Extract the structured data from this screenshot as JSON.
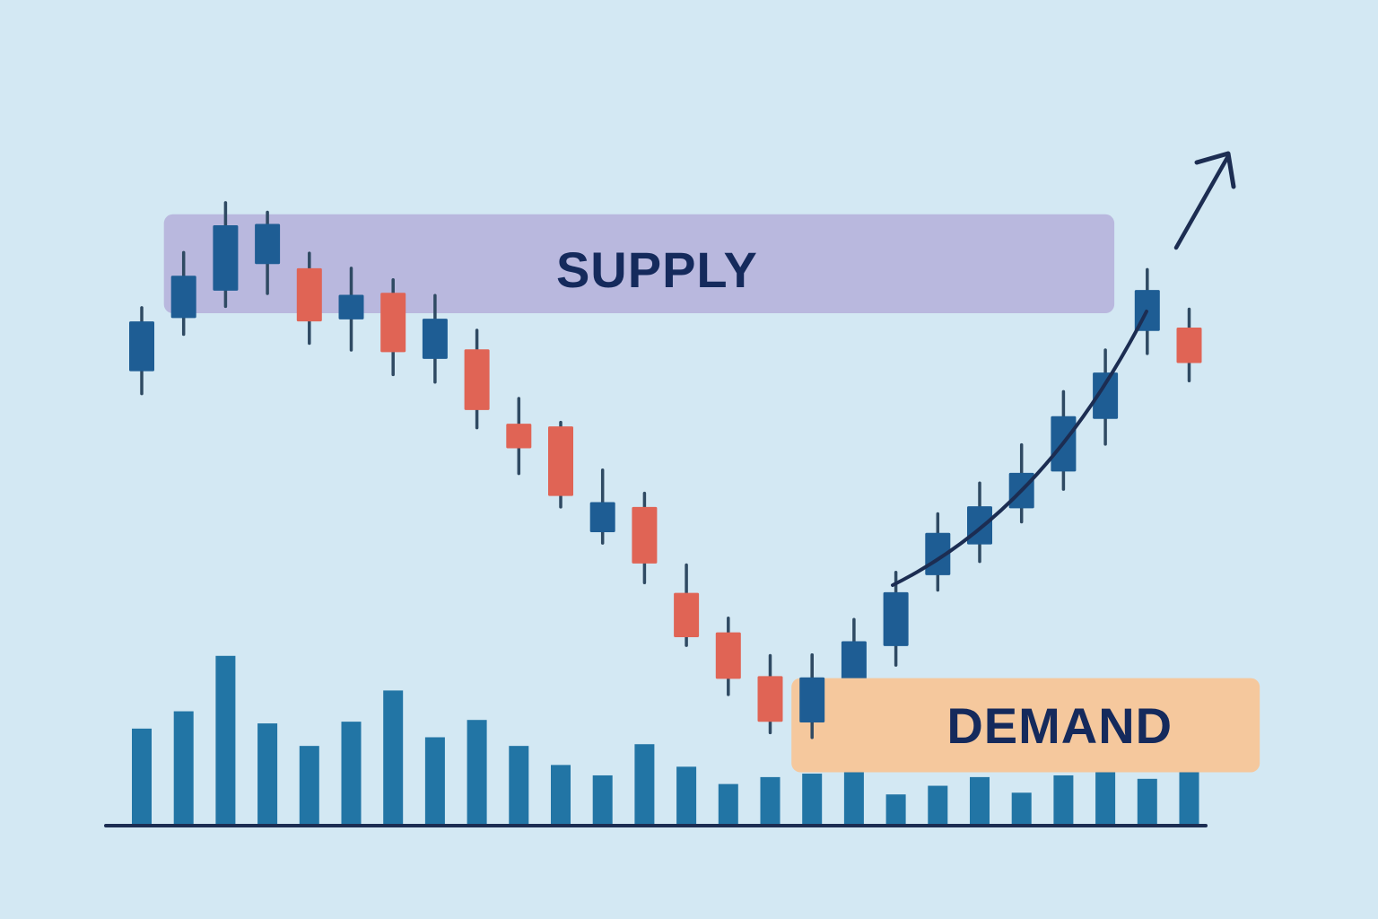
{
  "chart_data": {
    "type": "candlestick",
    "title": "",
    "xlabel": "",
    "ylabel": "",
    "grid": false,
    "legend": "none",
    "zones": {
      "supply": {
        "label": "SUPPLY",
        "price_low": 66.5,
        "price_high": 81.0,
        "from_candle": 1,
        "to_candle": 23,
        "color": "#b9b8de"
      },
      "demand": {
        "label": "DEMAND",
        "price_low": -0.8,
        "price_high": 13.0,
        "from_candle": 16,
        "to_candle": 26,
        "color": "#f5c89d"
      }
    },
    "colors": {
      "background": "#d3e8f3",
      "up_candle": "#1e5d94",
      "down_candle": "#e06455",
      "wick": "#2f4a63",
      "volume_bar": "#2275a5",
      "baseline": "#1c2d52",
      "arrow": "#1c2d52",
      "label_text": "#152a5c"
    },
    "price_range": [
      -6,
      94
    ],
    "candles": [
      {
        "open": 58.0,
        "close": 65.3,
        "high": 67.3,
        "low": 54.7,
        "direction": "up"
      },
      {
        "open": 65.8,
        "close": 72.0,
        "high": 75.4,
        "low": 63.4,
        "direction": "up"
      },
      {
        "open": 69.8,
        "close": 79.4,
        "high": 82.7,
        "low": 67.5,
        "direction": "up"
      },
      {
        "open": 73.7,
        "close": 79.6,
        "high": 81.3,
        "low": 69.4,
        "direction": "up"
      },
      {
        "open": 73.1,
        "close": 65.3,
        "high": 75.3,
        "low": 62.1,
        "direction": "down"
      },
      {
        "open": 65.6,
        "close": 69.2,
        "high": 73.1,
        "low": 61.1,
        "direction": "up"
      },
      {
        "open": 69.5,
        "close": 60.8,
        "high": 71.4,
        "low": 57.5,
        "direction": "down"
      },
      {
        "open": 59.8,
        "close": 65.7,
        "high": 69.1,
        "low": 56.4,
        "direction": "up"
      },
      {
        "open": 61.2,
        "close": 52.3,
        "high": 64.0,
        "low": 49.7,
        "direction": "down"
      },
      {
        "open": 50.3,
        "close": 46.7,
        "high": 54.0,
        "low": 43.0,
        "direction": "down"
      },
      {
        "open": 49.9,
        "close": 39.7,
        "high": 50.5,
        "low": 38.1,
        "direction": "down"
      },
      {
        "open": 34.4,
        "close": 38.8,
        "high": 43.5,
        "low": 32.8,
        "direction": "up"
      },
      {
        "open": 38.1,
        "close": 29.8,
        "high": 40.1,
        "low": 27.0,
        "direction": "down"
      },
      {
        "open": 25.5,
        "close": 19.0,
        "high": 29.6,
        "low": 17.8,
        "direction": "down"
      },
      {
        "open": 19.7,
        "close": 12.9,
        "high": 21.8,
        "low": 10.6,
        "direction": "down"
      },
      {
        "open": 13.3,
        "close": 6.6,
        "high": 16.3,
        "low": 5.0,
        "direction": "down"
      },
      {
        "open": 6.5,
        "close": 13.1,
        "high": 16.4,
        "low": 4.3,
        "direction": "up"
      },
      {
        "open": 11.9,
        "close": 18.4,
        "high": 21.6,
        "low": 9.8,
        "direction": "up"
      },
      {
        "open": 17.7,
        "close": 25.6,
        "high": 28.5,
        "low": 14.9,
        "direction": "up"
      },
      {
        "open": 28.1,
        "close": 34.3,
        "high": 37.1,
        "low": 25.9,
        "direction": "up"
      },
      {
        "open": 32.6,
        "close": 38.2,
        "high": 41.6,
        "low": 30.1,
        "direction": "up"
      },
      {
        "open": 37.9,
        "close": 43.1,
        "high": 47.2,
        "low": 35.9,
        "direction": "up"
      },
      {
        "open": 43.3,
        "close": 51.4,
        "high": 55.0,
        "low": 40.7,
        "direction": "up"
      },
      {
        "open": 51.0,
        "close": 57.8,
        "high": 61.1,
        "low": 47.3,
        "direction": "up"
      },
      {
        "open": 63.9,
        "close": 69.9,
        "high": 72.9,
        "low": 60.6,
        "direction": "up"
      },
      {
        "open": 64.4,
        "close": 59.2,
        "high": 67.1,
        "low": 56.6,
        "direction": "down"
      }
    ],
    "volume": [
      55,
      65,
      97,
      58,
      45,
      59,
      77,
      50,
      60,
      45,
      34,
      28,
      46,
      33,
      23,
      27,
      29,
      38,
      17,
      22,
      27,
      18,
      28,
      36,
      26,
      37
    ]
  }
}
